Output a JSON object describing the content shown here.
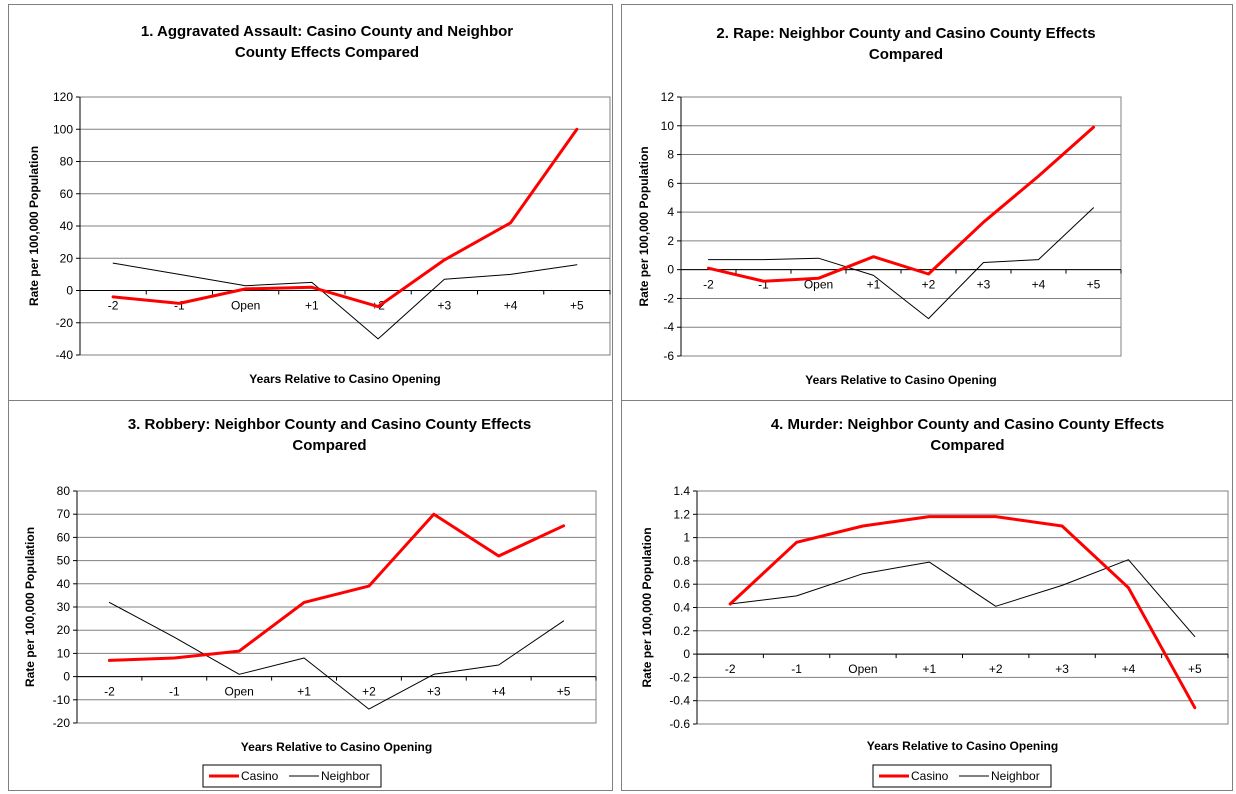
{
  "chart_data": [
    {
      "type": "line",
      "title_lines": [
        "1.  Aggravated Assault:  Casino County and Neighbor",
        "County Effects Compared"
      ],
      "xlabel": "Years Relative to Casino Opening",
      "ylabel": "Rate per 100,000 Population",
      "categories": [
        "-2",
        "-1",
        "Open",
        "+1",
        "+2",
        "+3",
        "+4",
        "+5"
      ],
      "ylim": [
        -40,
        120
      ],
      "yticks": [
        -40,
        -20,
        0,
        20,
        40,
        60,
        80,
        100,
        120
      ],
      "ytick_labels": [
        "-40",
        "-20",
        "0",
        "20",
        "40",
        "60",
        "80",
        "100",
        "120"
      ],
      "grid": true,
      "series": [
        {
          "name": "Casino",
          "values": [
            -4,
            -8,
            1,
            2,
            -10,
            19,
            42,
            100
          ]
        },
        {
          "name": "Neighbor",
          "values": [
            17,
            10,
            3,
            5,
            -30,
            7,
            10,
            16
          ]
        }
      ],
      "legend": false
    },
    {
      "type": "line",
      "title_lines": [
        "2.  Rape:  Neighbor County and Casino County Effects",
        "Compared"
      ],
      "xlabel": "Years Relative to Casino Opening",
      "ylabel": "Rate per 100,000 Population",
      "categories": [
        "-2",
        "-1",
        "Open",
        "+1",
        "+2",
        "+3",
        "+4",
        "+5"
      ],
      "ylim": [
        -6,
        12
      ],
      "yticks": [
        -6,
        -4,
        -2,
        0,
        2,
        4,
        6,
        8,
        10,
        12
      ],
      "ytick_labels": [
        "-6",
        "-4",
        "-2",
        "0",
        "2",
        "4",
        "6",
        "8",
        "10",
        "12"
      ],
      "grid": true,
      "series": [
        {
          "name": "Casino",
          "values": [
            0.1,
            -0.8,
            -0.6,
            0.9,
            -0.3,
            3.3,
            6.5,
            9.9
          ]
        },
        {
          "name": "Neighbor",
          "values": [
            0.7,
            0.7,
            0.8,
            -0.4,
            -3.4,
            0.5,
            0.7,
            4.3
          ]
        }
      ],
      "legend": false
    },
    {
      "type": "line",
      "title_lines": [
        "3.  Robbery:  Neighbor County and Casino County Effects",
        "Compared"
      ],
      "xlabel": "Years Relative to Casino Opening",
      "ylabel": "Rate per 100,000 Population",
      "categories": [
        "-2",
        "-1",
        "Open",
        "+1",
        "+2",
        "+3",
        "+4",
        "+5"
      ],
      "ylim": [
        -20,
        80
      ],
      "yticks": [
        -20,
        -10,
        0,
        10,
        20,
        30,
        40,
        50,
        60,
        70,
        80
      ],
      "ytick_labels": [
        "-20",
        "-10",
        "0",
        "10",
        "20",
        "30",
        "40",
        "50",
        "60",
        "70",
        "80"
      ],
      "grid": true,
      "series": [
        {
          "name": "Casino",
          "values": [
            7,
            8,
            11,
            32,
            39,
            70,
            52,
            65
          ]
        },
        {
          "name": "Neighbor",
          "values": [
            32,
            17,
            1,
            8,
            -14,
            1,
            5,
            24
          ]
        }
      ],
      "legend": true,
      "legend_placement": "bottom-center",
      "legend_labels": [
        "Casino",
        "Neighbor"
      ]
    },
    {
      "type": "line",
      "title_lines": [
        "4.  Murder:  Neighbor County and Casino County Effects",
        "Compared"
      ],
      "xlabel": "Years Relative to Casino Opening",
      "ylabel": "Rate per 100,000 Population",
      "categories": [
        "-2",
        "-1",
        "Open",
        "+1",
        "+2",
        "+3",
        "+4",
        "+5"
      ],
      "ylim": [
        -0.6,
        1.4
      ],
      "yticks": [
        -0.6,
        -0.4,
        -0.2,
        0,
        0.2,
        0.4,
        0.6,
        0.8,
        1.0,
        1.2,
        1.4
      ],
      "ytick_labels": [
        "-0.6",
        "-0.4",
        "-0.2",
        "0",
        "0.2",
        "0.4",
        "0.6",
        "0.8",
        "1",
        "1.2",
        "1.4"
      ],
      "grid": true,
      "series": [
        {
          "name": "Casino",
          "values": [
            0.43,
            0.96,
            1.1,
            1.18,
            1.18,
            1.1,
            0.57,
            -0.46
          ]
        },
        {
          "name": "Neighbor",
          "values": [
            0.43,
            0.5,
            0.69,
            0.79,
            0.41,
            0.59,
            0.81,
            0.15
          ]
        }
      ],
      "legend": true,
      "legend_placement": "bottom-center",
      "legend_labels": [
        "Casino",
        "Neighbor"
      ]
    }
  ],
  "colors": {
    "casino": "#ff0000",
    "neighbor": "#000000",
    "gridline": "#808080",
    "panel_border": "#808080",
    "plot_border": "#808080"
  }
}
